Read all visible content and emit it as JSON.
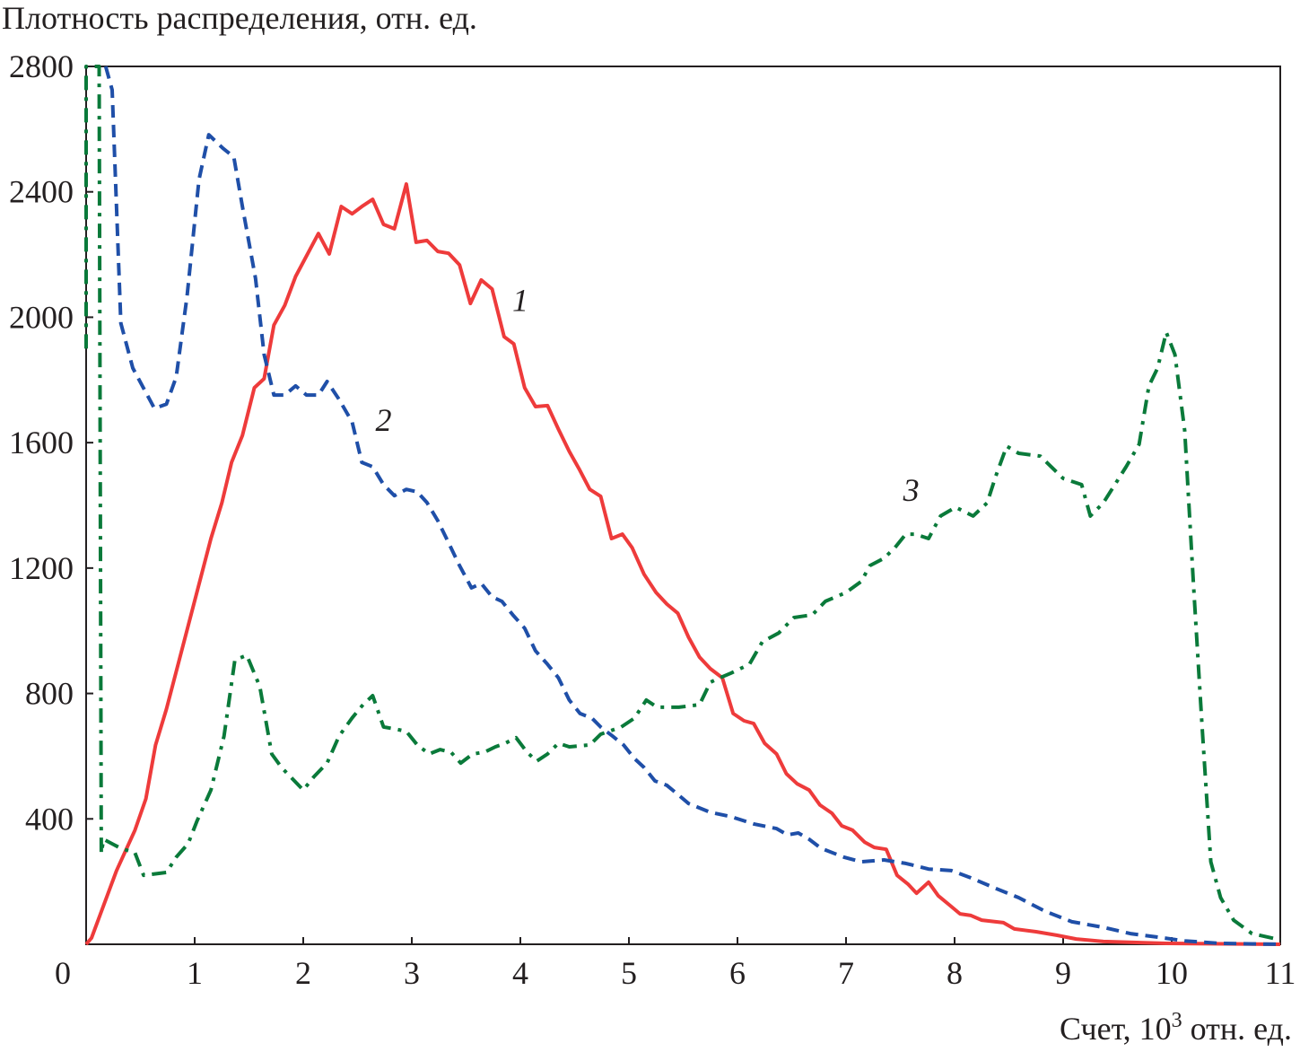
{
  "chart_data": {
    "type": "line",
    "title": "",
    "ylabel": "Плотность распределения, отн. ед.",
    "xlabel": "Счет, 10",
    "xlabel_sup": "3",
    "xlabel_suffix": " отн. ед.",
    "xlim": [
      0,
      11
    ],
    "ylim": [
      0,
      2800
    ],
    "xticks": [
      0,
      1,
      2,
      3,
      4,
      5,
      6,
      7,
      8,
      9,
      10,
      11
    ],
    "yticks": [
      400,
      800,
      1200,
      1600,
      2000,
      2400,
      2800
    ],
    "grid": false,
    "series": [
      {
        "name": "1",
        "color": "#ee3b3b",
        "style": "solid",
        "label_at": [
          4.0,
          2020
        ],
        "points": [
          [
            0,
            0
          ],
          [
            0.05,
            20
          ],
          [
            0.28,
            235
          ],
          [
            0.45,
            364
          ],
          [
            0.55,
            464
          ],
          [
            0.64,
            636
          ],
          [
            0.74,
            750
          ],
          [
            1.15,
            1294
          ],
          [
            1.25,
            1408
          ],
          [
            1.34,
            1537
          ],
          [
            1.44,
            1623
          ],
          [
            1.55,
            1775
          ],
          [
            1.64,
            1804
          ],
          [
            1.73,
            1975
          ],
          [
            1.83,
            2038
          ],
          [
            1.93,
            2130
          ],
          [
            2.14,
            2267
          ],
          [
            2.24,
            2202
          ],
          [
            2.35,
            2353
          ],
          [
            2.45,
            2330
          ],
          [
            2.54,
            2353
          ],
          [
            2.64,
            2376
          ],
          [
            2.74,
            2296
          ],
          [
            2.84,
            2282
          ],
          [
            2.95,
            2425
          ],
          [
            3.04,
            2239
          ],
          [
            3.14,
            2245
          ],
          [
            3.24,
            2210
          ],
          [
            3.34,
            2204
          ],
          [
            3.44,
            2167
          ],
          [
            3.54,
            2044
          ],
          [
            3.64,
            2119
          ],
          [
            3.74,
            2090
          ],
          [
            3.85,
            1938
          ],
          [
            3.94,
            1915
          ],
          [
            4.04,
            1775
          ],
          [
            4.14,
            1715
          ],
          [
            4.25,
            1718
          ],
          [
            4.35,
            1643
          ],
          [
            4.45,
            1572
          ],
          [
            4.54,
            1517
          ],
          [
            4.64,
            1451
          ],
          [
            4.74,
            1429
          ],
          [
            4.84,
            1294
          ],
          [
            4.94,
            1308
          ],
          [
            5.03,
            1265
          ],
          [
            5.14,
            1180
          ],
          [
            5.25,
            1122
          ],
          [
            5.35,
            1085
          ],
          [
            5.45,
            1056
          ],
          [
            5.55,
            979
          ],
          [
            5.65,
            916
          ],
          [
            5.75,
            879
          ],
          [
            5.86,
            850
          ],
          [
            5.96,
            736
          ],
          [
            6.06,
            713
          ],
          [
            6.15,
            704
          ],
          [
            6.25,
            641
          ],
          [
            6.36,
            607
          ],
          [
            6.45,
            544
          ],
          [
            6.55,
            512
          ],
          [
            6.66,
            492
          ],
          [
            6.76,
            444
          ],
          [
            6.87,
            418
          ],
          [
            6.96,
            378
          ],
          [
            7.06,
            364
          ],
          [
            7.17,
            326
          ],
          [
            7.26,
            309
          ],
          [
            7.37,
            303
          ],
          [
            7.47,
            220
          ],
          [
            7.57,
            192
          ],
          [
            7.65,
            163
          ],
          [
            7.76,
            198
          ],
          [
            7.85,
            155
          ],
          [
            7.95,
            126
          ],
          [
            8.05,
            97
          ],
          [
            8.15,
            92
          ],
          [
            8.25,
            77
          ],
          [
            8.45,
            69
          ],
          [
            8.55,
            49
          ],
          [
            8.75,
            40
          ],
          [
            8.94,
            29
          ],
          [
            9.12,
            17
          ],
          [
            9.37,
            9
          ],
          [
            9.95,
            3
          ],
          [
            11,
            0
          ]
        ]
      },
      {
        "name": "2",
        "color": "#1f4fa8",
        "style": "dashed",
        "label_at": [
          2.74,
          1638
        ],
        "points": [
          [
            0.18,
            2800
          ],
          [
            0.24,
            2725
          ],
          [
            0.32,
            1981
          ],
          [
            0.43,
            1838
          ],
          [
            0.63,
            1709
          ],
          [
            0.74,
            1723
          ],
          [
            0.83,
            1809
          ],
          [
            0.93,
            2067
          ],
          [
            1.04,
            2439
          ],
          [
            1.13,
            2582
          ],
          [
            1.26,
            2539
          ],
          [
            1.36,
            2511
          ],
          [
            1.44,
            2353
          ],
          [
            1.56,
            2124
          ],
          [
            1.64,
            1881
          ],
          [
            1.73,
            1752
          ],
          [
            1.83,
            1752
          ],
          [
            1.93,
            1781
          ],
          [
            2.03,
            1752
          ],
          [
            2.14,
            1752
          ],
          [
            2.22,
            1795
          ],
          [
            2.33,
            1738
          ],
          [
            2.45,
            1666
          ],
          [
            2.54,
            1537
          ],
          [
            2.64,
            1523
          ],
          [
            2.74,
            1466
          ],
          [
            2.84,
            1431
          ],
          [
            2.95,
            1451
          ],
          [
            3.05,
            1443
          ],
          [
            3.14,
            1409
          ],
          [
            3.24,
            1351
          ],
          [
            3.34,
            1280
          ],
          [
            3.44,
            1208
          ],
          [
            3.55,
            1137
          ],
          [
            3.64,
            1151
          ],
          [
            3.74,
            1108
          ],
          [
            3.83,
            1094
          ],
          [
            3.93,
            1051
          ],
          [
            4.04,
            1008
          ],
          [
            4.14,
            936
          ],
          [
            4.25,
            893
          ],
          [
            4.35,
            850
          ],
          [
            4.45,
            779
          ],
          [
            4.55,
            736
          ],
          [
            4.66,
            721
          ],
          [
            4.74,
            693
          ],
          [
            4.85,
            664
          ],
          [
            4.95,
            636
          ],
          [
            5.05,
            593
          ],
          [
            5.14,
            564
          ],
          [
            5.24,
            521
          ],
          [
            5.35,
            507
          ],
          [
            5.45,
            478
          ],
          [
            5.55,
            449
          ],
          [
            5.65,
            435
          ],
          [
            5.75,
            421
          ],
          [
            5.94,
            407
          ],
          [
            6.15,
            384
          ],
          [
            6.36,
            369
          ],
          [
            6.46,
            349
          ],
          [
            6.56,
            355
          ],
          [
            6.66,
            335
          ],
          [
            6.77,
            306
          ],
          [
            6.98,
            278
          ],
          [
            7.14,
            263
          ],
          [
            7.35,
            269
          ],
          [
            7.55,
            258
          ],
          [
            7.76,
            240
          ],
          [
            7.97,
            235
          ],
          [
            8.15,
            212
          ],
          [
            8.38,
            178
          ],
          [
            8.59,
            149
          ],
          [
            8.83,
            106
          ],
          [
            9.08,
            72
          ],
          [
            9.37,
            54
          ],
          [
            9.62,
            34
          ],
          [
            9.87,
            23
          ],
          [
            10.12,
            11
          ],
          [
            10.45,
            3
          ],
          [
            11,
            0
          ]
        ]
      },
      {
        "name": "3",
        "color": "#0a7a3a",
        "style": "dashdot",
        "label_at": [
          7.6,
          1414
        ],
        "points": [
          [
            0,
            1900
          ],
          [
            0,
            2800
          ],
          [
            0.1,
            2800
          ],
          [
            0.12,
            2800
          ],
          [
            0.14,
            290
          ],
          [
            0.16,
            335
          ],
          [
            0.32,
            306
          ],
          [
            0.45,
            292
          ],
          [
            0.53,
            220
          ],
          [
            0.74,
            229
          ],
          [
            0.83,
            278
          ],
          [
            0.94,
            321
          ],
          [
            1.02,
            392
          ],
          [
            1.15,
            492
          ],
          [
            1.27,
            664
          ],
          [
            1.37,
            907
          ],
          [
            1.48,
            922
          ],
          [
            1.6,
            822
          ],
          [
            1.71,
            607
          ],
          [
            1.8,
            564
          ],
          [
            2.0,
            492
          ],
          [
            2.1,
            535
          ],
          [
            2.22,
            578
          ],
          [
            2.33,
            664
          ],
          [
            2.45,
            722
          ],
          [
            2.55,
            764
          ],
          [
            2.64,
            793
          ],
          [
            2.74,
            693
          ],
          [
            2.84,
            687
          ],
          [
            2.95,
            679
          ],
          [
            3.05,
            636
          ],
          [
            3.16,
            607
          ],
          [
            3.26,
            621
          ],
          [
            3.36,
            613
          ],
          [
            3.45,
            578
          ],
          [
            3.56,
            607
          ],
          [
            3.67,
            613
          ],
          [
            3.77,
            630
          ],
          [
            3.86,
            641
          ],
          [
            3.96,
            659
          ],
          [
            4.06,
            613
          ],
          [
            4.15,
            584
          ],
          [
            4.25,
            607
          ],
          [
            4.35,
            641
          ],
          [
            4.45,
            630
          ],
          [
            4.64,
            636
          ],
          [
            4.74,
            670
          ],
          [
            4.93,
            693
          ],
          [
            5.05,
            721
          ],
          [
            5.16,
            779
          ],
          [
            5.26,
            756
          ],
          [
            5.46,
            756
          ],
          [
            5.65,
            764
          ],
          [
            5.75,
            836
          ],
          [
            5.84,
            850
          ],
          [
            5.94,
            865
          ],
          [
            6.11,
            893
          ],
          [
            6.23,
            965
          ],
          [
            6.38,
            993
          ],
          [
            6.52,
            1042
          ],
          [
            6.69,
            1051
          ],
          [
            6.81,
            1094
          ],
          [
            7.0,
            1122
          ],
          [
            7.14,
            1157
          ],
          [
            7.22,
            1208
          ],
          [
            7.35,
            1231
          ],
          [
            7.45,
            1265
          ],
          [
            7.55,
            1308
          ],
          [
            7.64,
            1308
          ],
          [
            7.76,
            1294
          ],
          [
            7.87,
            1366
          ],
          [
            8.01,
            1394
          ],
          [
            8.17,
            1366
          ],
          [
            8.3,
            1408
          ],
          [
            8.38,
            1494
          ],
          [
            8.48,
            1589
          ],
          [
            8.59,
            1566
          ],
          [
            8.79,
            1557
          ],
          [
            9.0,
            1486
          ],
          [
            9.17,
            1466
          ],
          [
            9.25,
            1366
          ],
          [
            9.37,
            1408
          ],
          [
            9.58,
            1523
          ],
          [
            9.7,
            1595
          ],
          [
            9.79,
            1781
          ],
          [
            9.87,
            1838
          ],
          [
            9.95,
            1952
          ],
          [
            10.03,
            1881
          ],
          [
            10.12,
            1638
          ],
          [
            10.2,
            1151
          ],
          [
            10.28,
            693
          ],
          [
            10.36,
            263
          ],
          [
            10.45,
            149
          ],
          [
            10.57,
            77
          ],
          [
            10.74,
            34
          ],
          [
            11,
            14
          ]
        ]
      }
    ]
  }
}
